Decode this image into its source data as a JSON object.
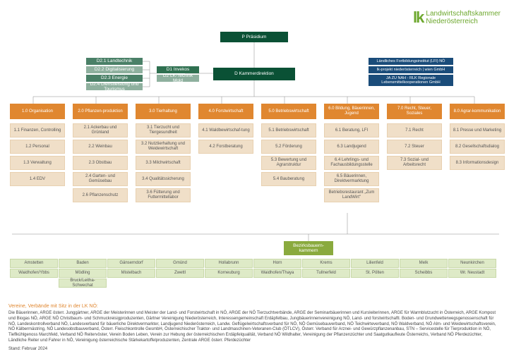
{
  "logo": {
    "mark": "lk",
    "line1": "Landwirtschaftskammer",
    "line2": "Niederösterreich"
  },
  "top": {
    "presidium": "P Präsidium",
    "direction": "D Kammerdirektion",
    "d2_1": "D2.1 Landtechnik",
    "d2_2": "D2.2 Digitalisierung",
    "d2_3": "D2.3 Energie",
    "d2_4": "D2.4 Dienstleistung und Tourismus",
    "d1_invekos": "D1 Invekos",
    "d1_lk": "D2 LK-Technik Mold",
    "blue1": "Ländliches Fortbildungsinstitut (LFI) NÖ",
    "blue2": "lk-projekt niederösterreich | wien GmbH",
    "blue3": "JA ZU NAH - RLK Regionale Lebensmittelkooperationen GmbH"
  },
  "depts": [
    {
      "head": "1.0 Organisation",
      "subs": [
        "1.1 Finanzen, Controlling",
        "1.2 Personal",
        "1.3 Verwaltung",
        "1.4 EDV"
      ]
    },
    {
      "head": "2.0 Pflanzen-produktion",
      "subs": [
        "2.1 Ackerbau und Grünland",
        "2.2 Weinbau",
        "2.3 Obstbau",
        "2.4 Garten- und Gemüsebau",
        "2.6 Pflanzenschutz"
      ]
    },
    {
      "head": "3.0 Tierhaltung",
      "subs": [
        "3.1 Tierzucht und Tiergesundheit",
        "3.2 Nutztierhaltung und Weidewirtschaft",
        "3.3 Milchwirtschaft",
        "3.4 Qualitätssicherung",
        "3.6 Fütterung und Futtermittellabor"
      ]
    },
    {
      "head": "4.0 Forstwirtschaft",
      "subs": [
        "4.1 Waldbewirtschaf-tung",
        "4.2 Forstberatung"
      ]
    },
    {
      "head": "5.0 Betriebswirtschaft",
      "subs": [
        "5.1 Betriebswirtschaft",
        "5.2 Förderung",
        "5.3 Bewertung und Agrarstruktur",
        "5.4 Bauberatung"
      ]
    },
    {
      "head": "6.0 Bildung, Bäuerinnen, Jugend",
      "subs": [
        "6.1 Beratung, LFI",
        "6.3 Landjugend",
        "6.4 Lehrlings- und Fachausbildungsstelle",
        "6.5 Bäuerinnen, Direktvermarktung",
        "Betriebsrestaurant „Zum LandWirt\""
      ]
    },
    {
      "head": "7.0 Recht, Steuer, Soziales",
      "subs": [
        "7.1 Recht",
        "7.2 Steuer",
        "7.3 Sozial- und Arbeitsrecht"
      ]
    },
    {
      "head": "8.0 Agrar-kommunikation",
      "subs": [
        "8.1 Presse und Marketing",
        "8.2 Gesellschaftsdialog",
        "8.3 Informationsdesign"
      ]
    }
  ],
  "bez": {
    "head": "Bezirksbauern-kammern",
    "rows": [
      [
        "Amstetten",
        "Baden",
        "Gänserndorf",
        "Gmünd",
        "Hollabrunn",
        "Horn",
        "Krems",
        "Lilienfeld",
        "Melk",
        "Neunkirchen"
      ],
      [
        "Waidhofen/Ybbs",
        "Mödling",
        "Mistelbach",
        "Zwettl",
        "Korneuburg",
        "Waidhofen/Thaya",
        "Tullnerfeld",
        "St. Pölten",
        "Scheibbs",
        "Wr. Neustadt"
      ],
      [
        "",
        "Bruck/Leitha-Schwechat",
        "",
        "",
        "",
        "",
        "",
        "",
        "",
        ""
      ]
    ]
  },
  "footer": {
    "title": "Vereine, Verbände mit Sitz in der LK NÖ:",
    "text": "Die Bäuerinnen, ARGE österr. Junggärtner, ARGE der Meisterinnen und Meister der Land- und Forstwirtschaft in NÖ, ARGE der NÖ Tierzuchtverbände, ARGE der Seminarbäuerinnen und Kursleiterinnen, ARGE für Warmblutzucht in Österreich, ARGE Kompost und Biogas NÖ, ARGE NÖ Christbaum- und Schmuckreisigproduzenten, Gärtner Vereinigung Niederösterreich, Interessengemeinschaft Erdäpfelbau, Jungbäuerinnenvereinigung NÖ, Land- und forstwirtschaftl. Boden- und Grundwetterwegsgenossenschaft für NÖ, Landeskontrollverband NÖ, Landesverband für bäuerliche Direktvermarkter, Landjugend Niederösterreich, Landw. Geflügelwirtschaftsverband für NÖ, NÖ Gemüsebauverband, NÖ Teichwirteverband, NÖ Waldverband, NÖ Alm- und Weidewirtschaftsverein, NÖ Kälbermästring, NÖ Landesobstbauverband, Österr. Fleischkontrolle GesmbH, Österreichischer Traktor- und Landmaschinen-Veteranen-Club (ÖTLCV), Österr. Verband für Arznei- und Gewürzpflanzenanbau, STN – Servicestelle für Tierproduktion in NÖ, Tieflkühlgenoss Marchfeld, Verband NÖ Reitervöster, Verein Boden Leben, Verein zur Hebung der österreichischen Erdäpfelqualität, Verband NÖ Wildhalter, Vereinigung der Pflanzenzüchter und Saatgutkaufleute Österreichs, Verband NÖ Pferdezüchter, Ländliche Reiter und Fahrer in NÖ, Vereinigung österreichische Stärkekartoffelproduzenten, Zentrale ARGE österr. Pferdezüchter",
    "stand": "Stand: Februar 2024"
  },
  "style": {
    "presidium_color": "#0a5135",
    "dept_head_color": "#e08730",
    "dept_sub_color": "#f0dfc8",
    "bez_head_color": "#8aaa3e",
    "bez_cell_color": "#deeac7",
    "blue_color": "#1a4c7a",
    "logo_color": "#6ea82f"
  }
}
